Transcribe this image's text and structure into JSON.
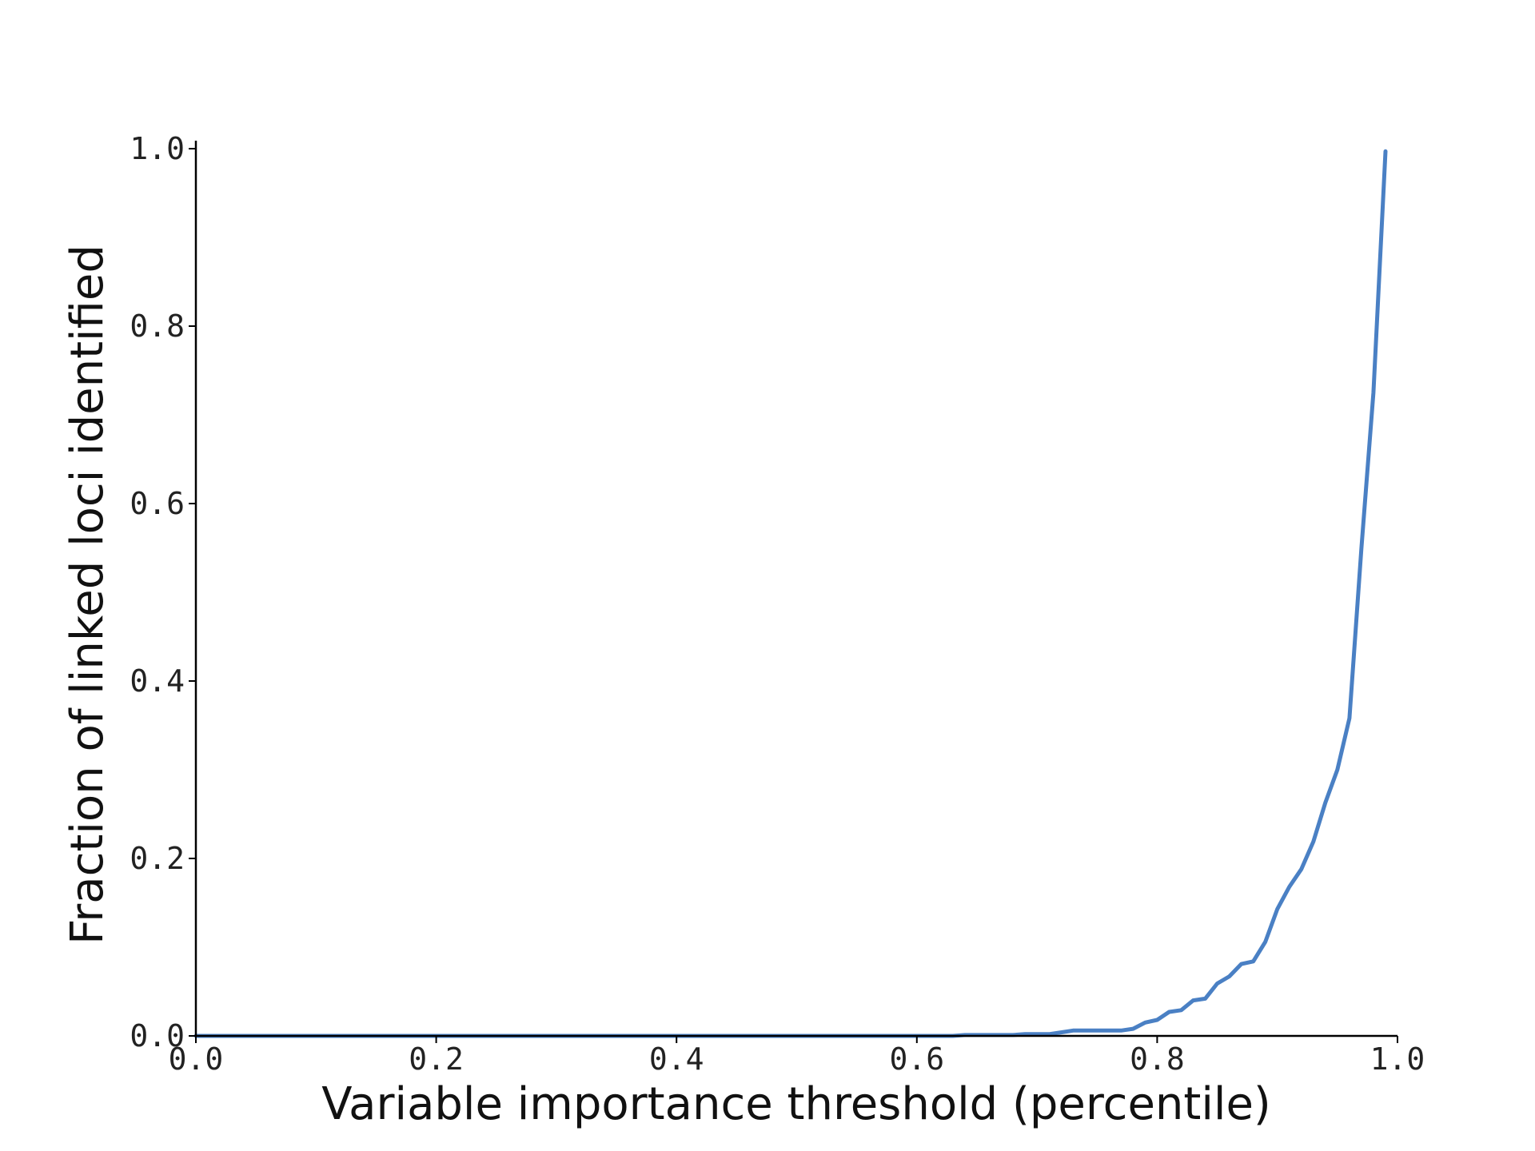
{
  "chart_data": {
    "type": "line",
    "title": "",
    "xlabel": "Variable importance threshold (percentile)",
    "ylabel": "Fraction of linked loci identified",
    "xlim": [
      0.0,
      1.0
    ],
    "ylim": [
      0.0,
      1.0
    ],
    "x_ticks": [
      "0.0",
      "0.2",
      "0.4",
      "0.6",
      "0.8",
      "1.0"
    ],
    "y_ticks": [
      "0.0",
      "0.2",
      "0.4",
      "0.6",
      "0.8",
      "1.0"
    ],
    "grid": false,
    "legend": "none",
    "series": [
      {
        "color": "#4a80c4",
        "x": [
          0.0,
          0.1,
          0.2,
          0.3,
          0.4,
          0.5,
          0.6,
          0.63,
          0.64,
          0.65,
          0.66,
          0.67,
          0.68,
          0.69,
          0.7,
          0.71,
          0.72,
          0.73,
          0.74,
          0.75,
          0.76,
          0.77,
          0.78,
          0.79,
          0.8,
          0.81,
          0.82,
          0.83,
          0.84,
          0.85,
          0.86,
          0.87,
          0.88,
          0.89,
          0.9,
          0.91,
          0.92,
          0.93,
          0.94,
          0.95,
          0.96,
          0.97,
          0.98,
          0.99
        ],
        "y": [
          0.0,
          0.0,
          0.0,
          0.0,
          0.0,
          0.0,
          0.0,
          0.0,
          0.001,
          0.001,
          0.001,
          0.001,
          0.001,
          0.002,
          0.002,
          0.002,
          0.004,
          0.006,
          0.006,
          0.006,
          0.006,
          0.006,
          0.008,
          0.015,
          0.018,
          0.027,
          0.029,
          0.04,
          0.042,
          0.059,
          0.067,
          0.081,
          0.084,
          0.106,
          0.143,
          0.168,
          0.188,
          0.219,
          0.263,
          0.3,
          0.358,
          0.55,
          0.725,
          0.997
        ]
      }
    ]
  }
}
